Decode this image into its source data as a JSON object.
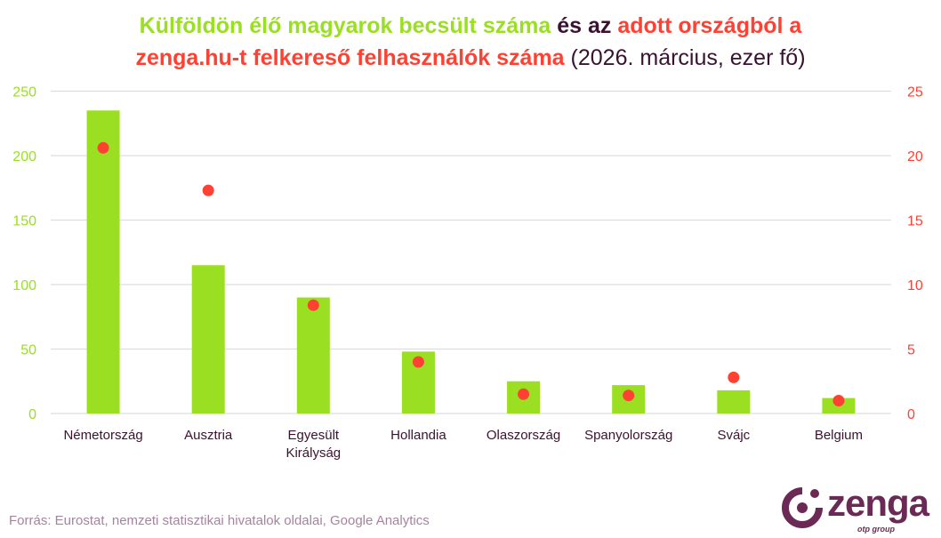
{
  "title": {
    "part1": "Külföldön élő magyarok becsült száma",
    "part2": "és az",
    "part3": "adott országból a",
    "part4": "zenga.hu-t felkereső felhasználók száma",
    "part5": "(2026. március, ezer fő)"
  },
  "colors": {
    "bars": "#9ADF22",
    "dots": "#FF4133",
    "text_dark": "#3A1230",
    "logo": "#6B2A55"
  },
  "chart_data": {
    "type": "bar",
    "title": "Külföldön élő magyarok becsült száma és az adott országból a zenga.hu-t felkereső felhasználók száma (2026. március, ezer fő)",
    "categories": [
      "Németország",
      "Ausztria",
      "Egyesült Királyság",
      "Hollandia",
      "Olaszország",
      "Spanyolország",
      "Svájc",
      "Belgium"
    ],
    "series": [
      {
        "name": "Külföldön élő magyarok becsült száma",
        "type": "bar",
        "axis": "left",
        "values": [
          235,
          115,
          90,
          48,
          25,
          22,
          18,
          12
        ]
      },
      {
        "name": "adott országból a zenga.hu-t felkereső felhasználók száma",
        "type": "scatter",
        "axis": "right",
        "values": [
          20.6,
          17.3,
          8.4,
          4.0,
          1.5,
          1.4,
          2.8,
          1.0
        ]
      }
    ],
    "ylim": [
      0,
      250
    ],
    "y2lim": [
      0,
      25
    ],
    "yticks": [
      "0",
      "50",
      "100",
      "150",
      "200",
      "250"
    ],
    "y2ticks": [
      "0",
      "5",
      "10",
      "15",
      "20",
      "25"
    ],
    "grid": true,
    "legend": "none"
  },
  "source": "Forrás: Eurostat, nemzeti statisztikai hivatalok oldalai, Google Analytics",
  "logo": {
    "name": "zenga",
    "sub": "otp group"
  }
}
